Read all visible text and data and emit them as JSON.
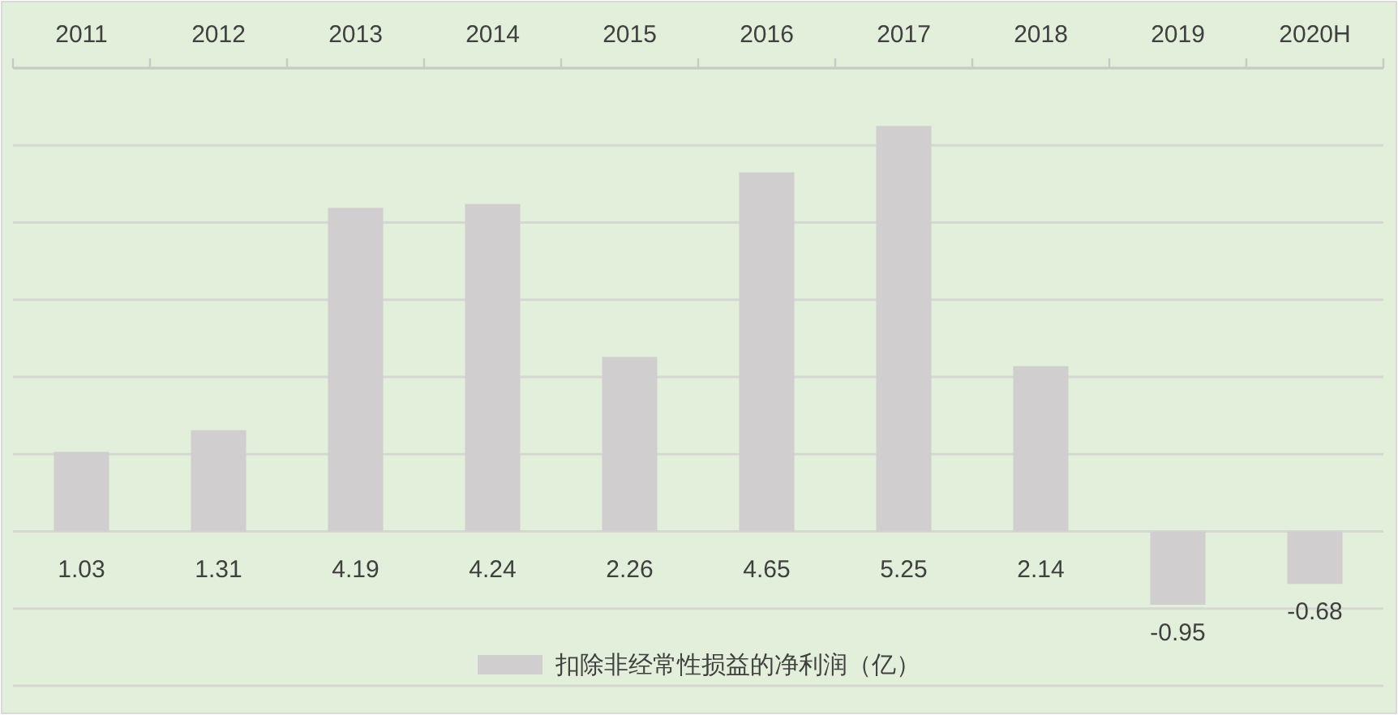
{
  "chart_data": {
    "type": "bar",
    "categories": [
      "2011",
      "2012",
      "2013",
      "2014",
      "2015",
      "2016",
      "2017",
      "2018",
      "2019",
      "2020H"
    ],
    "series": [
      {
        "name": "扣除非经常性损益的净利润（亿）",
        "color": "#d0cece",
        "values": [
          1.03,
          1.31,
          4.19,
          4.24,
          2.26,
          4.65,
          5.25,
          2.14,
          -0.95,
          -0.68
        ]
      }
    ],
    "ylim": [
      -2,
      6
    ],
    "yticks": [
      {
        "value": -2,
        "label": null
      },
      {
        "value": -1,
        "label": null
      },
      {
        "value": 0,
        "label": null
      },
      {
        "value": 1,
        "label": null
      },
      {
        "value": 2,
        "label": null
      },
      {
        "value": 3,
        "label": null
      },
      {
        "value": 4,
        "label": null
      },
      {
        "value": 5,
        "label": null
      },
      {
        "value": 6,
        "label": null
      }
    ],
    "tick_labels": "x",
    "grid": "y",
    "data_labels": true,
    "legend": "bottom"
  }
}
